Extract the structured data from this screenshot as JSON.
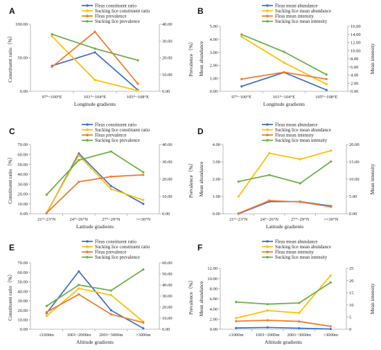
{
  "chart_data": [
    {
      "panel": "A",
      "type": "line",
      "categories": [
        "97°~100°E",
        "101°~104°E",
        "105°~108°E"
      ],
      "xlabel": "Longitude gradients",
      "ylabel_left": "Constituent ratio（%）",
      "ylabel_right": "Prevalence（%）",
      "ylim_left": [
        0,
        100
      ],
      "yticks_left": [
        "0.00",
        "50.00",
        "100.00"
      ],
      "ylim_right": [
        0,
        40
      ],
      "yticks_right": [
        "0.00",
        "10.00",
        "20.00",
        "30.00",
        "40.00"
      ],
      "legend": "top",
      "series": [
        {
          "name": "Fleas constituent ratio",
          "color": "#4472C4",
          "axis": "left",
          "values": [
            38,
            58,
            2
          ]
        },
        {
          "name": "Sucking lice constituent ratio",
          "color": "#FFC000",
          "axis": "left",
          "values": [
            82,
            17,
            1
          ]
        },
        {
          "name": "Fleas prevalence",
          "color": "#ED7D31",
          "axis": "right",
          "values": [
            14.5,
            35.5,
            4.5
          ]
        },
        {
          "name": "Sucking lice prevalence",
          "color": "#70AD47",
          "axis": "right",
          "values": [
            34,
            25.5,
            18.5
          ]
        }
      ]
    },
    {
      "panel": "B",
      "type": "line",
      "categories": [
        "97°~100°E",
        "101°~104°E",
        "105°~108°E"
      ],
      "xlabel": "Longitude gradients",
      "ylabel_left": "Mean abundance",
      "ylabel_right": "Mean intensity",
      "ylim_left": [
        0,
        5
      ],
      "yticks_left": [
        "0.00",
        "1.00",
        "2.00",
        "3.00",
        "4.00",
        "5.00"
      ],
      "ylim_right": [
        0,
        16
      ],
      "yticks_right": [
        "0.00",
        "2.00",
        "4.00",
        "6.00",
        "8.00",
        "10.00",
        "12.00",
        "14.00",
        "16.00"
      ],
      "legend": "top",
      "series": [
        {
          "name": "Fleas mean abundance",
          "color": "#4472C4",
          "axis": "left",
          "values": [
            0.38,
            1.45,
            0.1
          ]
        },
        {
          "name": "Sucking lice mean abundance",
          "color": "#FFC000",
          "axis": "left",
          "values": [
            4.2,
            2.2,
            0.55
          ]
        },
        {
          "name": "Fleas mean intensity",
          "color": "#ED7D31",
          "axis": "right",
          "values": [
            3.0,
            4.7,
            3.0
          ]
        },
        {
          "name": "Sucking lice mean intensity",
          "color": "#70AD47",
          "axis": "right",
          "values": [
            14.0,
            9.7,
            4.1
          ]
        }
      ]
    },
    {
      "panel": "C",
      "type": "line",
      "categories": [
        "21°~23°N",
        "24°~26°N",
        "27°~29°N",
        ">=30°N"
      ],
      "xlabel": "Latitude gradients",
      "ylabel_left": "Constituent ratio（%）",
      "ylabel_right": "Prevalence（%）",
      "ylim_left": [
        0,
        70
      ],
      "yticks_left": [
        "0.00",
        "10.00",
        "20.00",
        "30.00",
        "40.00",
        "50.00",
        "60.00",
        "70.00"
      ],
      "ylim_right": [
        0,
        40
      ],
      "yticks_right": [
        "0.00",
        "10.00",
        "20.00",
        "30.00",
        "40.00"
      ],
      "legend": "top",
      "series": [
        {
          "name": "Fleas constituent ratio",
          "color": "#4472C4",
          "axis": "left",
          "values": [
            0.5,
            61,
            28,
            10
          ]
        },
        {
          "name": "Sucking lice constituent ratio",
          "color": "#FFC000",
          "axis": "left",
          "values": [
            1,
            59,
            25,
            14
          ]
        },
        {
          "name": "Fleas prevalence",
          "color": "#ED7D31",
          "axis": "right",
          "values": [
            0.5,
            18.5,
            21.5,
            22.5
          ]
        },
        {
          "name": "Sucking lice prevalence",
          "color": "#70AD47",
          "axis": "right",
          "values": [
            11,
            31,
            36,
            24
          ]
        }
      ]
    },
    {
      "panel": "D",
      "type": "line",
      "categories": [
        "21°~23°N",
        "24°~26°N",
        "27°~29°N",
        ">=30°N"
      ],
      "xlabel": "Latitude gradients",
      "ylabel_left": "Mean abundance",
      "ylabel_right": "Mean intensity",
      "ylim_left": [
        0,
        4
      ],
      "yticks_left": [
        "0.00",
        "1.00",
        "2.00",
        "3.00",
        "4.00"
      ],
      "ylim_right": [
        0,
        20
      ],
      "yticks_right": [
        "0.00",
        "5.00",
        "10.00",
        "15.00",
        "20.00"
      ],
      "legend": "top",
      "series": [
        {
          "name": "Fleas mean abundance",
          "color": "#4472C4",
          "axis": "left",
          "values": [
            0.0,
            0.7,
            0.7,
            0.45
          ]
        },
        {
          "name": "Sucking lice mean abundance",
          "color": "#FFC000",
          "axis": "left",
          "values": [
            1.0,
            3.5,
            3.15,
            3.65
          ]
        },
        {
          "name": "Fleas mean intensity",
          "color": "#ED7D31",
          "axis": "right",
          "values": [
            0.1,
            3.8,
            3.4,
            2.0
          ]
        },
        {
          "name": "Sucking lice mean intensity",
          "color": "#70AD47",
          "axis": "right",
          "values": [
            9.3,
            11.2,
            8.8,
            15.1
          ]
        }
      ]
    },
    {
      "panel": "E",
      "type": "line",
      "categories": [
        "≤1000m",
        "1001~2000m",
        "2001~3000m",
        ">3000m"
      ],
      "xlabel": "Altitude gradients",
      "ylabel_left": "Constituent ratio（%）",
      "ylabel_right": "Prevalence（%）",
      "ylim_left": [
        0,
        70
      ],
      "yticks_left": [
        "0.00",
        "10.00",
        "20.00",
        "30.00",
        "40.00",
        "50.00",
        "60.00",
        "70.00"
      ],
      "ylim_right": [
        0,
        60
      ],
      "yticks_right": [
        "0.00",
        "10.00",
        "20.00",
        "30.00",
        "40.00",
        "50.00",
        "60.00"
      ],
      "legend": "top",
      "series": [
        {
          "name": "Fleas constituent ratio",
          "color": "#4472C4",
          "axis": "left",
          "values": [
            17,
            61,
            20,
            1
          ]
        },
        {
          "name": "Sucking lice constituent ratio",
          "color": "#FFC000",
          "axis": "left",
          "values": [
            14,
            43,
            36,
            8
          ]
        },
        {
          "name": "Fleas prevalence",
          "color": "#ED7D31",
          "axis": "right",
          "values": [
            15.5,
            31.5,
            13.5,
            6
          ]
        },
        {
          "name": "Sucking lice prevalence",
          "color": "#70AD47",
          "axis": "right",
          "values": [
            21,
            40,
            35,
            54
          ]
        }
      ]
    },
    {
      "panel": "F",
      "type": "line",
      "categories": [
        "≤1000m",
        "1001~2000m",
        "2001~3000m",
        ">3000m"
      ],
      "xlabel": "Altitude gradients",
      "ylabel_left": "Mean abundance",
      "ylabel_right": "Mean intensity",
      "ylim_left": [
        0,
        12
      ],
      "yticks_left": [
        "0.00",
        "2.00",
        "4.00",
        "6.00",
        "8.00",
        "10.00",
        "12.00"
      ],
      "ylim_right": [
        0,
        25
      ],
      "yticks_right": [
        "0",
        "5",
        "10",
        "15",
        "20",
        "25"
      ],
      "legend": "top",
      "series": [
        {
          "name": "Fleas mean abundance",
          "color": "#4472C4",
          "axis": "left",
          "values": [
            0.25,
            0.35,
            0.2,
            0.05
          ]
        },
        {
          "name": "Sucking lice mean abundance",
          "color": "#FFC000",
          "axis": "left",
          "values": [
            2.2,
            3.7,
            3.2,
            10.6
          ]
        },
        {
          "name": "Fleas mean intensity",
          "color": "#ED7D31",
          "axis": "right",
          "values": [
            3.3,
            3.7,
            3.2,
            1.2
          ]
        },
        {
          "name": "Sucking lice mean intensity",
          "color": "#70AD47",
          "axis": "right",
          "values": [
            11.2,
            10.3,
            10.8,
            19.2
          ]
        }
      ]
    }
  ]
}
